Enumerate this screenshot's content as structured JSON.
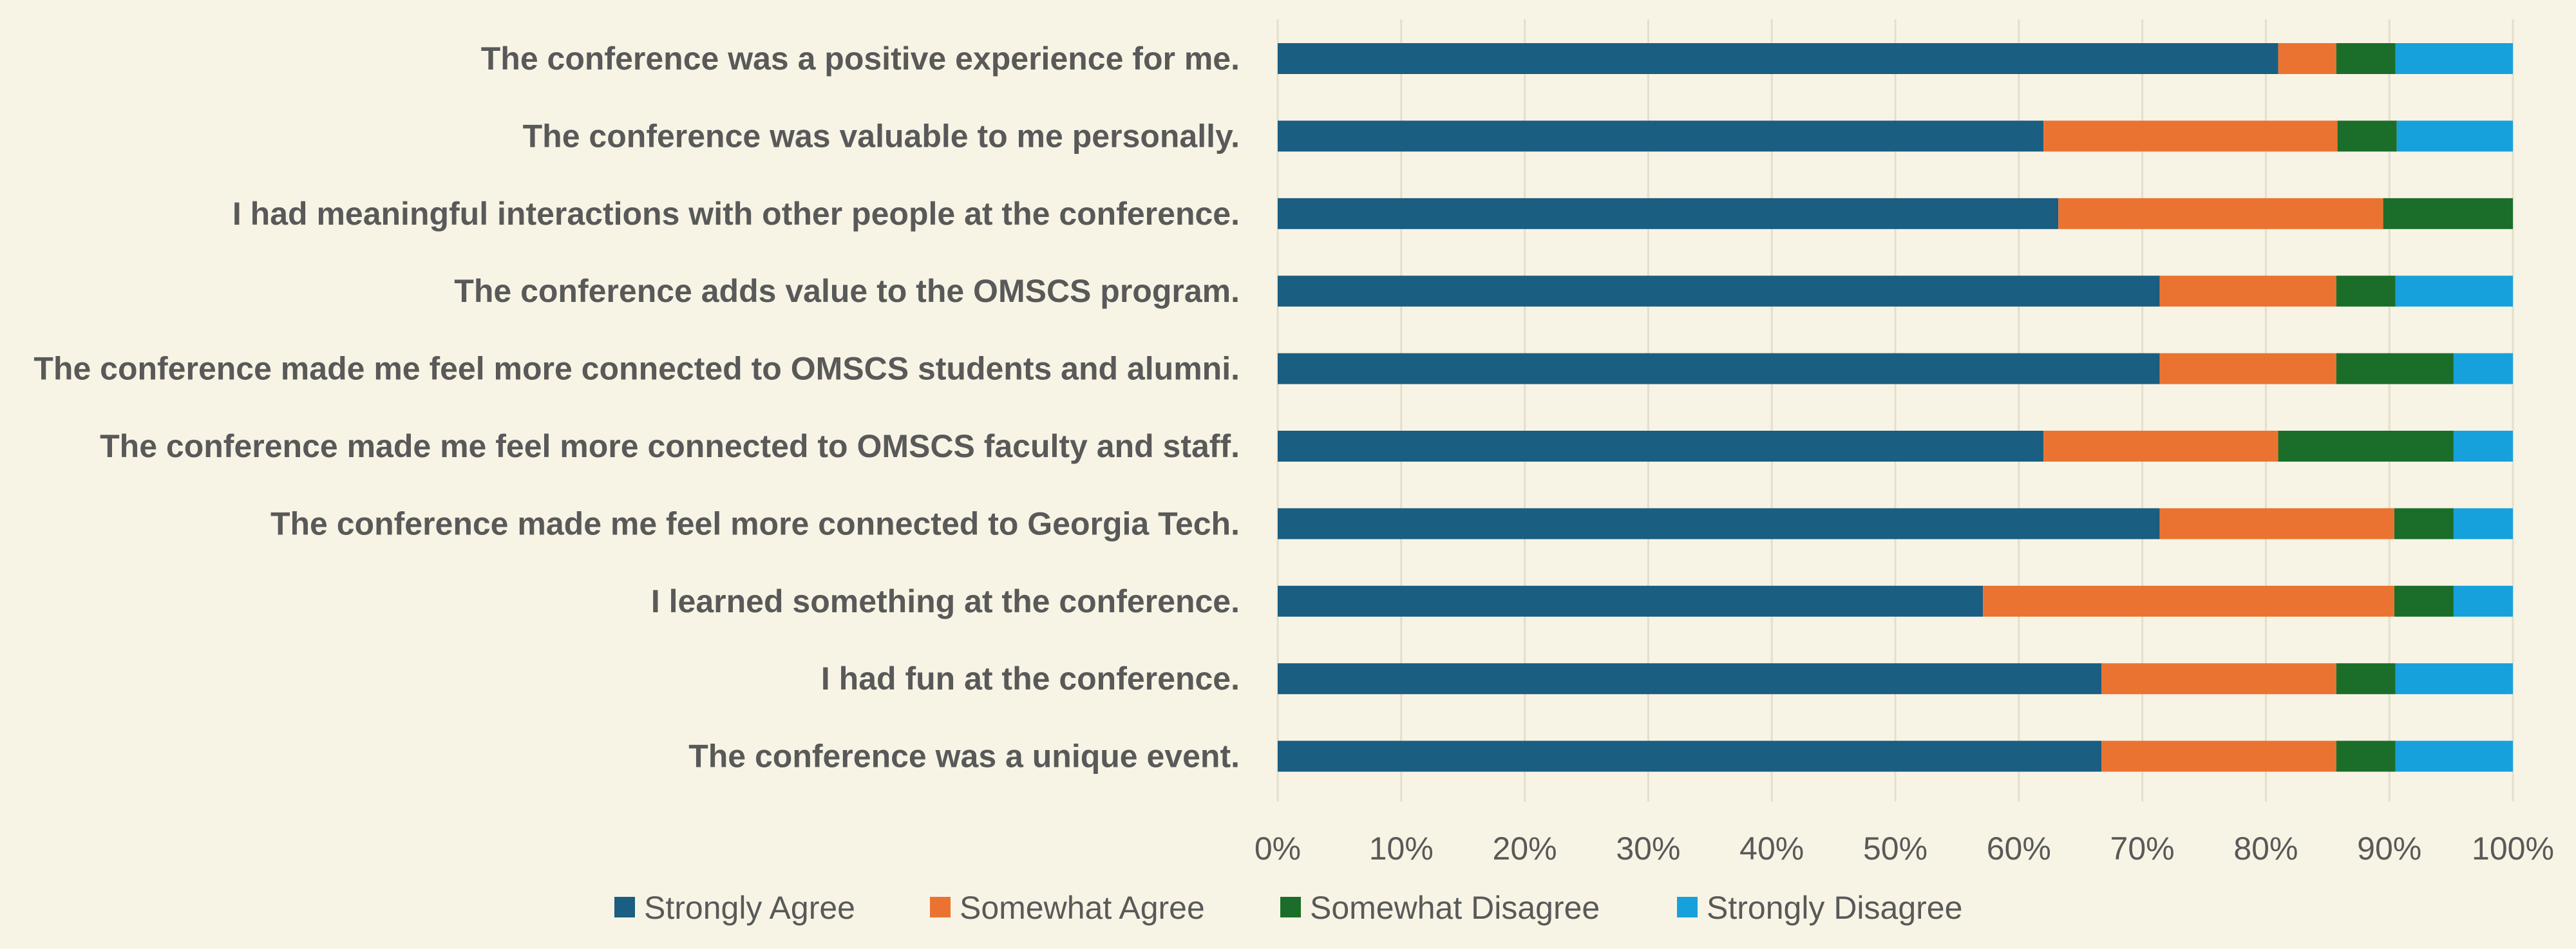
{
  "chart_data": {
    "type": "bar",
    "orientation": "horizontal",
    "stacked": "percent",
    "title": "",
    "xlabel": "",
    "ylabel": "",
    "xlim": [
      0,
      100
    ],
    "x_ticks": [
      "0%",
      "10%",
      "20%",
      "30%",
      "40%",
      "50%",
      "60%",
      "70%",
      "80%",
      "90%",
      "100%"
    ],
    "grid": true,
    "legend_position": "bottom",
    "categories": [
      "The conference was a positive experience for me.",
      "The conference was valuable to me personally.",
      "I had meaningful interactions with other people at the conference.",
      "The conference adds value to the OMSCS program.",
      "The conference made me feel more connected to OMSCS students and alumni.",
      "The conference made me feel more connected to OMSCS faculty and staff.",
      "The conference made me feel more connected to Georgia Tech.",
      "I learned something at the conference.",
      "I had fun at the conference.",
      "The conference was a unique event."
    ],
    "series": [
      {
        "name": "Strongly Agree",
        "color": "#1a5e82",
        "values": [
          81,
          62,
          63.2,
          71.4,
          71.4,
          62,
          71.4,
          57.1,
          66.7,
          66.7
        ]
      },
      {
        "name": "Somewhat Agree",
        "color": "#eb7331",
        "values": [
          4.7,
          23.8,
          26.3,
          14.3,
          14.3,
          19,
          19,
          33.3,
          19,
          19
        ]
      },
      {
        "name": "Somewhat Disagree",
        "color": "#1b6e2a",
        "values": [
          4.8,
          4.8,
          10.5,
          4.8,
          9.5,
          14.2,
          4.8,
          4.8,
          4.8,
          4.8
        ]
      },
      {
        "name": "Strongly Disagree",
        "color": "#17a1dc",
        "values": [
          9.5,
          9.4,
          0,
          9.5,
          4.8,
          4.8,
          4.8,
          4.8,
          9.5,
          9.5
        ]
      }
    ]
  }
}
